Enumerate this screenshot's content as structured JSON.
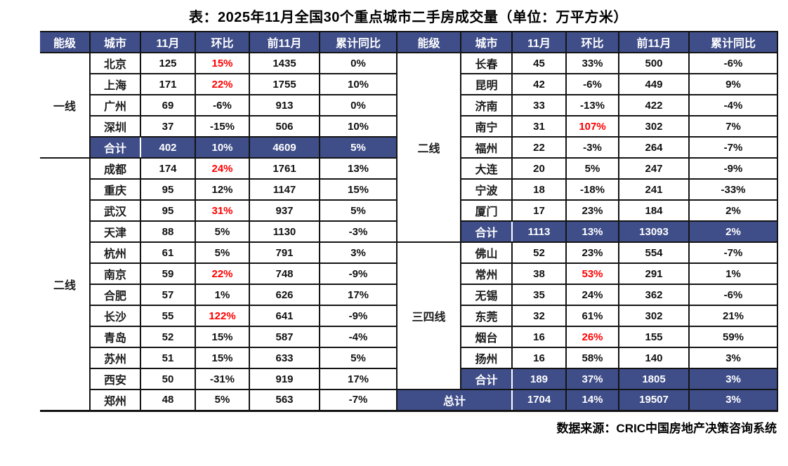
{
  "title": "表：2025年11月全国30个重点城市二手房成交量（单位：万平方米）",
  "footer": {
    "source": "数据来源：CRIC中国房地产决策咨询系统"
  },
  "colors": {
    "header_bg": "#3F4E89",
    "total_row_bg": "#3F4E89",
    "highlight_red": "#FF0000",
    "header_text": "#FFFFFF",
    "border": "#141414"
  },
  "tables": [
    {
      "id": "left",
      "headers": [
        "能级",
        "城市",
        "11月",
        "环比",
        "前11月",
        "累计同比"
      ],
      "groups": [
        {
          "tier": "一线",
          "cities": [
            {
              "city": "北京",
              "nov": "125",
              "mom": "15%",
              "mom_red": true,
              "prev11": "1435",
              "yoy": "0%"
            },
            {
              "city": "上海",
              "nov": "171",
              "mom": "22%",
              "mom_red": true,
              "prev11": "1755",
              "yoy": "10%"
            },
            {
              "city": "广州",
              "nov": "69",
              "mom": "-6%",
              "mom_red": false,
              "prev11": "913",
              "yoy": "0%"
            },
            {
              "city": "深圳",
              "nov": "37",
              "mom": "-15%",
              "mom_red": false,
              "prev11": "506",
              "yoy": "10%"
            }
          ],
          "total": {
            "label": "合计",
            "nov": "402",
            "mom": "10%",
            "prev11": "4609",
            "yoy": "5%"
          }
        },
        {
          "tier": "二线",
          "cities": [
            {
              "city": "成都",
              "nov": "174",
              "mom": "24%",
              "mom_red": true,
              "prev11": "1761",
              "yoy": "13%"
            },
            {
              "city": "重庆",
              "nov": "95",
              "mom": "12%",
              "mom_red": false,
              "prev11": "1147",
              "yoy": "15%"
            },
            {
              "city": "武汉",
              "nov": "95",
              "mom": "31%",
              "mom_red": true,
              "prev11": "937",
              "yoy": "5%"
            },
            {
              "city": "天津",
              "nov": "88",
              "mom": "5%",
              "mom_red": false,
              "prev11": "1130",
              "yoy": "-3%"
            },
            {
              "city": "杭州",
              "nov": "61",
              "mom": "5%",
              "mom_red": false,
              "prev11": "791",
              "yoy": "3%"
            },
            {
              "city": "南京",
              "nov": "59",
              "mom": "22%",
              "mom_red": true,
              "prev11": "748",
              "yoy": "-9%"
            },
            {
              "city": "合肥",
              "nov": "57",
              "mom": "1%",
              "mom_red": false,
              "prev11": "626",
              "yoy": "17%"
            },
            {
              "city": "长沙",
              "nov": "55",
              "mom": "122%",
              "mom_red": true,
              "prev11": "641",
              "yoy": "-9%"
            },
            {
              "city": "青岛",
              "nov": "52",
              "mom": "15%",
              "mom_red": false,
              "prev11": "587",
              "yoy": "-4%"
            },
            {
              "city": "苏州",
              "nov": "51",
              "mom": "15%",
              "mom_red": false,
              "prev11": "633",
              "yoy": "5%"
            },
            {
              "city": "西安",
              "nov": "50",
              "mom": "-31%",
              "mom_red": false,
              "prev11": "919",
              "yoy": "17%"
            },
            {
              "city": "郑州",
              "nov": "48",
              "mom": "5%",
              "mom_red": false,
              "prev11": "563",
              "yoy": "-7%"
            }
          ],
          "total": null
        }
      ],
      "grand_total": null
    },
    {
      "id": "right",
      "headers": [
        "能级",
        "城市",
        "11月",
        "环比",
        "前11月",
        "累计同比"
      ],
      "groups": [
        {
          "tier": "二线",
          "cities": [
            {
              "city": "长春",
              "nov": "45",
              "mom": "33%",
              "mom_red": false,
              "prev11": "500",
              "yoy": "-6%"
            },
            {
              "city": "昆明",
              "nov": "42",
              "mom": "-6%",
              "mom_red": false,
              "prev11": "449",
              "yoy": "9%"
            },
            {
              "city": "济南",
              "nov": "33",
              "mom": "-13%",
              "mom_red": false,
              "prev11": "422",
              "yoy": "-4%"
            },
            {
              "city": "南宁",
              "nov": "31",
              "mom": "107%",
              "mom_red": true,
              "prev11": "302",
              "yoy": "7%"
            },
            {
              "city": "福州",
              "nov": "22",
              "mom": "-3%",
              "mom_red": false,
              "prev11": "264",
              "yoy": "-7%"
            },
            {
              "city": "大连",
              "nov": "20",
              "mom": "5%",
              "mom_red": false,
              "prev11": "247",
              "yoy": "-9%"
            },
            {
              "city": "宁波",
              "nov": "18",
              "mom": "-18%",
              "mom_red": false,
              "prev11": "241",
              "yoy": "-33%"
            },
            {
              "city": "厦门",
              "nov": "17",
              "mom": "23%",
              "mom_red": false,
              "prev11": "184",
              "yoy": "2%"
            }
          ],
          "total": {
            "label": "合计",
            "nov": "1113",
            "mom": "13%",
            "prev11": "13093",
            "yoy": "2%"
          }
        },
        {
          "tier": "三四线",
          "cities": [
            {
              "city": "佛山",
              "nov": "52",
              "mom": "23%",
              "mom_red": false,
              "prev11": "554",
              "yoy": "-7%"
            },
            {
              "city": "常州",
              "nov": "38",
              "mom": "53%",
              "mom_red": true,
              "prev11": "291",
              "yoy": "1%"
            },
            {
              "city": "无锡",
              "nov": "35",
              "mom": "24%",
              "mom_red": false,
              "prev11": "362",
              "yoy": "-6%"
            },
            {
              "city": "东莞",
              "nov": "32",
              "mom": "61%",
              "mom_red": false,
              "prev11": "302",
              "yoy": "21%"
            },
            {
              "city": "烟台",
              "nov": "16",
              "mom": "26%",
              "mom_red": true,
              "prev11": "155",
              "yoy": "59%"
            },
            {
              "city": "扬州",
              "nov": "16",
              "mom": "58%",
              "mom_red": false,
              "prev11": "140",
              "yoy": "3%"
            }
          ],
          "total": {
            "label": "合计",
            "nov": "189",
            "mom": "37%",
            "prev11": "1805",
            "yoy": "3%"
          }
        }
      ],
      "grand_total": {
        "label": "总计",
        "nov": "1704",
        "mom": "14%",
        "prev11": "19507",
        "yoy": "3%"
      }
    }
  ]
}
